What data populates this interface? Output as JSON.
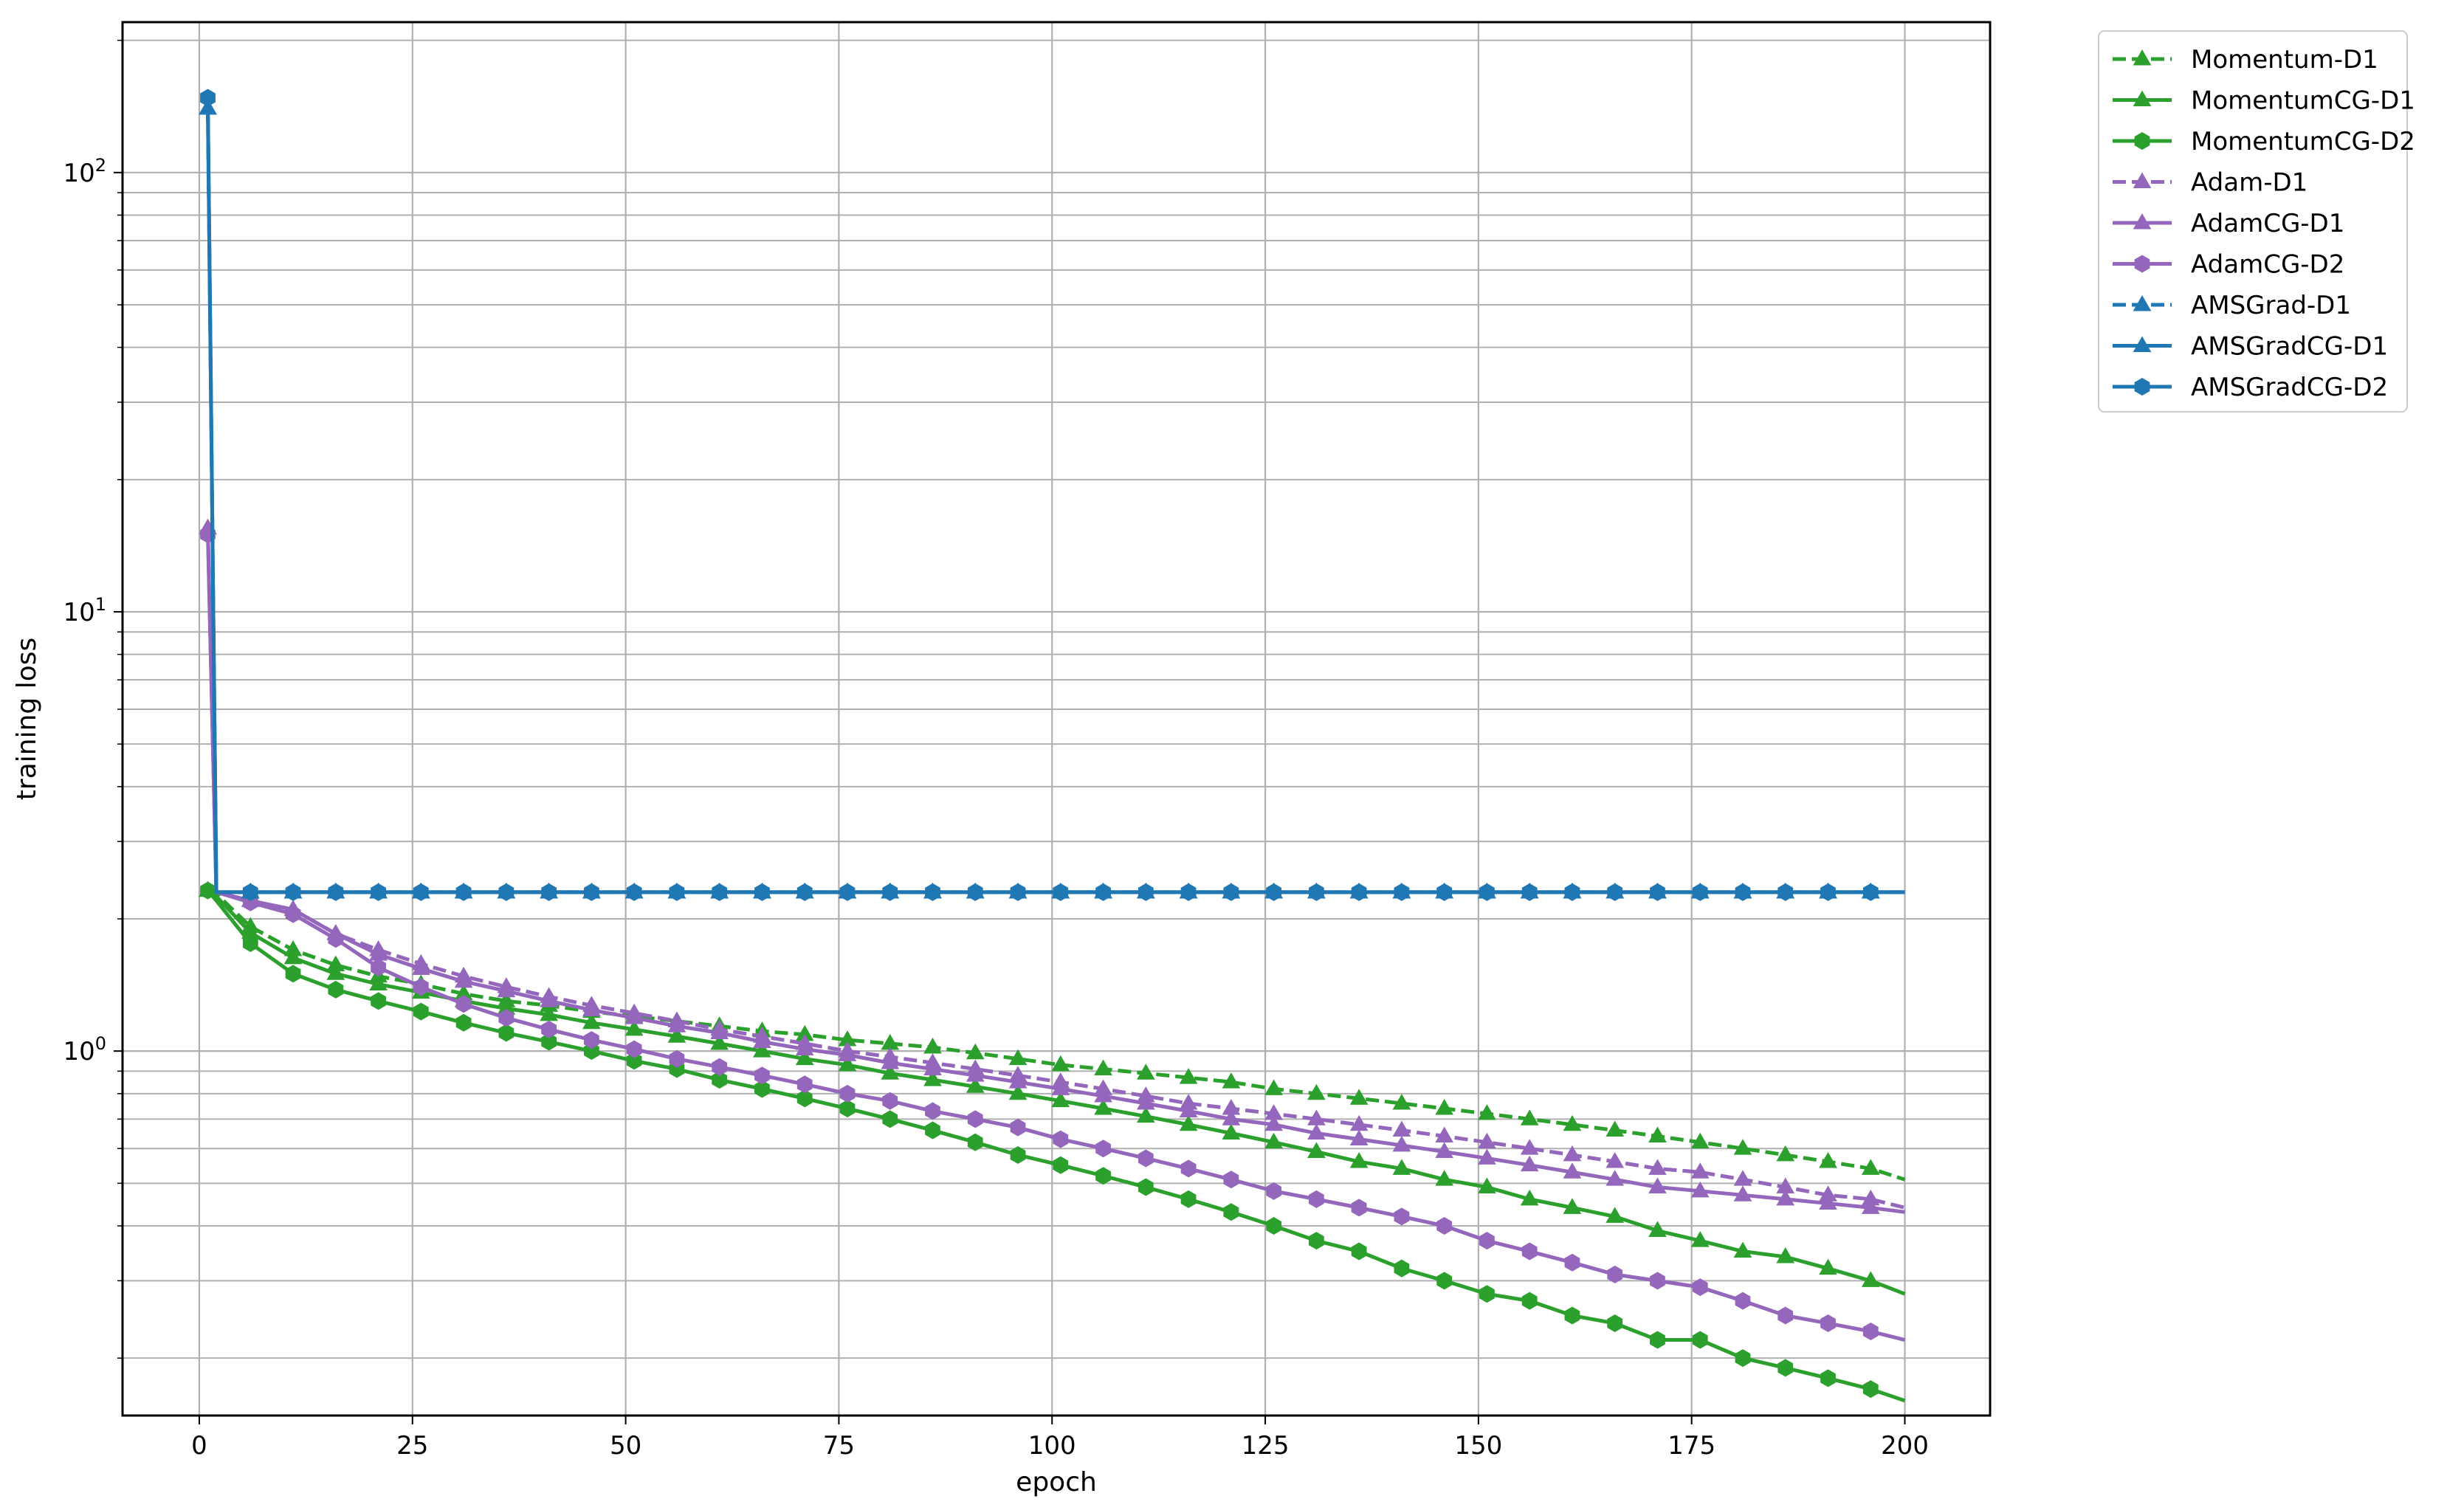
{
  "chart_data": {
    "type": "line",
    "title": "",
    "xlabel": "epoch",
    "ylabel": "training loss",
    "xlim": [
      -9,
      210
    ],
    "ylim": [
      0.148,
      220
    ],
    "yscale": "log",
    "grid": true,
    "legend_placement": "outside upper right",
    "x_ticks": [
      0,
      25,
      50,
      75,
      100,
      125,
      150,
      175,
      200
    ],
    "y_ticks": [
      {
        "value": 1,
        "label": "10^0"
      },
      {
        "value": 10,
        "label": "10^1"
      },
      {
        "value": 100,
        "label": "10^2"
      }
    ],
    "x": [
      1,
      2,
      6,
      11,
      16,
      21,
      26,
      31,
      36,
      41,
      46,
      51,
      56,
      61,
      66,
      71,
      76,
      81,
      86,
      91,
      96,
      101,
      106,
      111,
      116,
      121,
      126,
      131,
      136,
      141,
      146,
      151,
      156,
      161,
      166,
      171,
      176,
      181,
      186,
      191,
      196,
      200
    ],
    "series": [
      {
        "name": "Momentum-D1",
        "color": "#2ca02c",
        "line": "dashed",
        "marker": "triangle",
        "values": [
          2.32,
          2.28,
          1.92,
          1.7,
          1.57,
          1.48,
          1.42,
          1.35,
          1.3,
          1.27,
          1.23,
          1.2,
          1.17,
          1.14,
          1.11,
          1.09,
          1.06,
          1.04,
          1.02,
          0.99,
          0.96,
          0.93,
          0.91,
          0.89,
          0.87,
          0.85,
          0.82,
          0.8,
          0.78,
          0.76,
          0.74,
          0.72,
          0.7,
          0.68,
          0.66,
          0.64,
          0.62,
          0.6,
          0.58,
          0.56,
          0.54,
          0.51
        ]
      },
      {
        "name": "MomentumCG-D1",
        "color": "#2ca02c",
        "line": "solid",
        "marker": "triangle",
        "values": [
          2.32,
          2.25,
          1.86,
          1.63,
          1.5,
          1.42,
          1.36,
          1.3,
          1.25,
          1.21,
          1.16,
          1.12,
          1.08,
          1.04,
          1.0,
          0.96,
          0.93,
          0.89,
          0.86,
          0.83,
          0.8,
          0.77,
          0.74,
          0.71,
          0.68,
          0.65,
          0.62,
          0.59,
          0.56,
          0.54,
          0.51,
          0.49,
          0.46,
          0.44,
          0.42,
          0.39,
          0.37,
          0.35,
          0.34,
          0.32,
          0.3,
          0.28
        ]
      },
      {
        "name": "MomentumCG-D2",
        "color": "#2ca02c",
        "line": "solid",
        "marker": "hexagon",
        "values": [
          2.32,
          2.2,
          1.76,
          1.5,
          1.38,
          1.3,
          1.23,
          1.16,
          1.1,
          1.05,
          1.0,
          0.95,
          0.91,
          0.86,
          0.82,
          0.78,
          0.74,
          0.7,
          0.66,
          0.62,
          0.58,
          0.55,
          0.52,
          0.49,
          0.46,
          0.43,
          0.4,
          0.37,
          0.35,
          0.32,
          0.3,
          0.28,
          0.27,
          0.25,
          0.24,
          0.22,
          0.22,
          0.2,
          0.19,
          0.18,
          0.17,
          0.16
        ]
      },
      {
        "name": "Adam-D1",
        "color": "#9467bd",
        "line": "dashed",
        "marker": "triangle",
        "values": [
          15.5,
          2.3,
          2.2,
          2.1,
          1.85,
          1.7,
          1.58,
          1.48,
          1.4,
          1.33,
          1.27,
          1.22,
          1.17,
          1.12,
          1.08,
          1.04,
          1.0,
          0.97,
          0.94,
          0.91,
          0.88,
          0.85,
          0.82,
          0.79,
          0.76,
          0.74,
          0.72,
          0.7,
          0.68,
          0.66,
          0.64,
          0.62,
          0.6,
          0.58,
          0.56,
          0.54,
          0.53,
          0.51,
          0.49,
          0.47,
          0.46,
          0.44
        ]
      },
      {
        "name": "AdamCG-D1",
        "color": "#9467bd",
        "line": "solid",
        "marker": "triangle",
        "values": [
          15.5,
          2.3,
          2.2,
          2.1,
          1.85,
          1.66,
          1.54,
          1.44,
          1.37,
          1.3,
          1.24,
          1.19,
          1.14,
          1.1,
          1.05,
          1.01,
          0.98,
          0.94,
          0.91,
          0.88,
          0.85,
          0.82,
          0.79,
          0.76,
          0.73,
          0.7,
          0.68,
          0.65,
          0.63,
          0.61,
          0.59,
          0.57,
          0.55,
          0.53,
          0.51,
          0.49,
          0.48,
          0.47,
          0.46,
          0.45,
          0.44,
          0.43
        ]
      },
      {
        "name": "AdamCG-D2",
        "color": "#9467bd",
        "line": "solid",
        "marker": "hexagon",
        "values": [
          15.0,
          2.3,
          2.18,
          2.05,
          1.8,
          1.55,
          1.4,
          1.28,
          1.19,
          1.12,
          1.06,
          1.01,
          0.96,
          0.92,
          0.88,
          0.84,
          0.8,
          0.77,
          0.73,
          0.7,
          0.67,
          0.63,
          0.6,
          0.57,
          0.54,
          0.51,
          0.48,
          0.46,
          0.44,
          0.42,
          0.4,
          0.37,
          0.35,
          0.33,
          0.31,
          0.3,
          0.29,
          0.27,
          0.25,
          0.24,
          0.23,
          0.22
        ]
      },
      {
        "name": "AMSGrad-D1",
        "color": "#1f77b4",
        "line": "dashed",
        "marker": "triangle",
        "values": [
          140,
          2.3,
          2.3,
          2.3,
          2.3,
          2.3,
          2.3,
          2.3,
          2.3,
          2.3,
          2.3,
          2.3,
          2.3,
          2.3,
          2.3,
          2.3,
          2.3,
          2.3,
          2.3,
          2.3,
          2.3,
          2.3,
          2.3,
          2.3,
          2.3,
          2.3,
          2.3,
          2.3,
          2.3,
          2.3,
          2.3,
          2.3,
          2.3,
          2.3,
          2.3,
          2.3,
          2.3,
          2.3,
          2.3,
          2.3,
          2.3,
          2.3
        ]
      },
      {
        "name": "AMSGradCG-D1",
        "color": "#1f77b4",
        "line": "solid",
        "marker": "triangle",
        "values": [
          140,
          2.3,
          2.3,
          2.3,
          2.3,
          2.3,
          2.3,
          2.3,
          2.3,
          2.3,
          2.3,
          2.3,
          2.3,
          2.3,
          2.3,
          2.3,
          2.3,
          2.3,
          2.3,
          2.3,
          2.3,
          2.3,
          2.3,
          2.3,
          2.3,
          2.3,
          2.3,
          2.3,
          2.3,
          2.3,
          2.3,
          2.3,
          2.3,
          2.3,
          2.3,
          2.3,
          2.3,
          2.3,
          2.3,
          2.3,
          2.3,
          2.3
        ]
      },
      {
        "name": "AMSGradCG-D2",
        "color": "#1f77b4",
        "line": "solid",
        "marker": "hexagon",
        "values": [
          148,
          2.3,
          2.3,
          2.3,
          2.3,
          2.3,
          2.3,
          2.3,
          2.3,
          2.3,
          2.3,
          2.3,
          2.3,
          2.3,
          2.3,
          2.3,
          2.3,
          2.3,
          2.3,
          2.3,
          2.3,
          2.3,
          2.3,
          2.3,
          2.3,
          2.3,
          2.3,
          2.3,
          2.3,
          2.3,
          2.3,
          2.3,
          2.3,
          2.3,
          2.3,
          2.3,
          2.3,
          2.3,
          2.3,
          2.3,
          2.3,
          2.3
        ]
      }
    ]
  }
}
